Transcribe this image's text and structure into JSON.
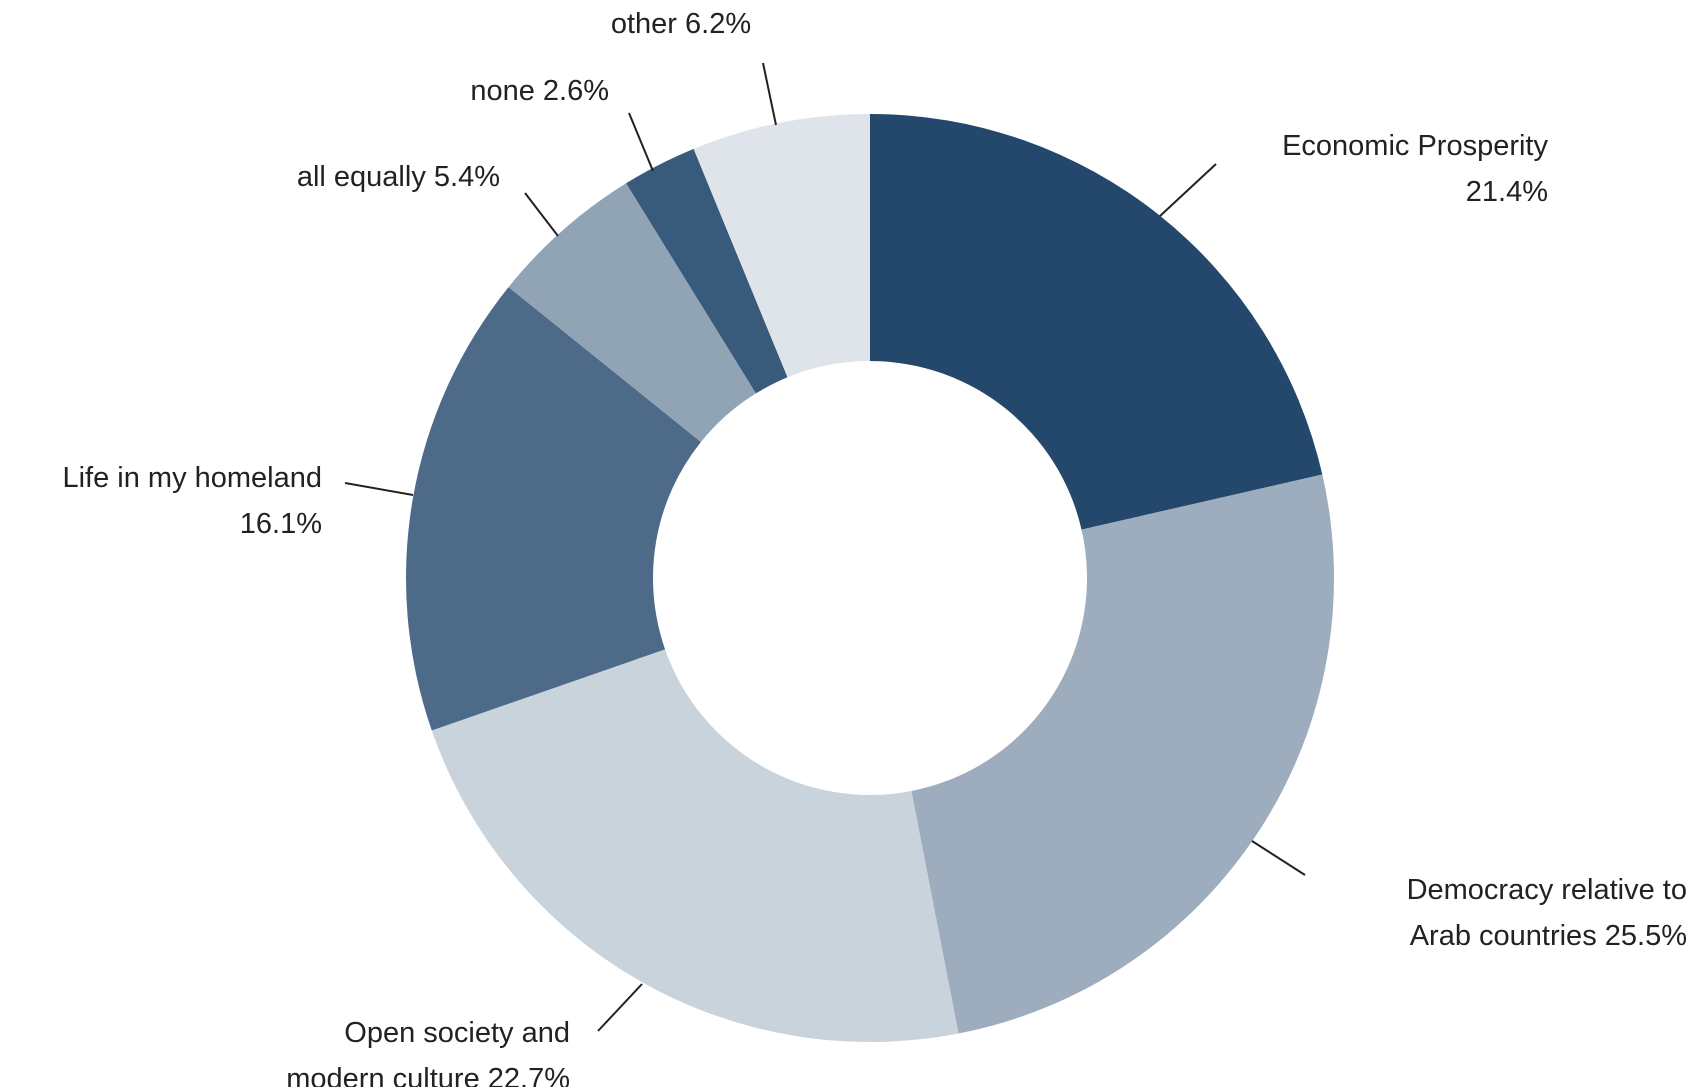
{
  "chart_data": {
    "type": "pie",
    "categories": [
      "Economic Prosperity",
      "Democracy relative to Arab countries",
      "Open society and modern culture",
      "Life in my homeland",
      "all equally",
      "none",
      "other"
    ],
    "values": [
      21.4,
      25.5,
      22.7,
      16.1,
      5.4,
      2.6,
      6.2
    ],
    "value_labels": [
      "21.4%",
      "25.5%",
      "22.7%",
      "16.1%",
      "5.4%",
      "2.6%",
      "6.2%"
    ],
    "colors": [
      "#23486b",
      "#9dadbd",
      "#c8d3dc",
      "#4d6b88",
      "#91a4b5",
      "#385a7b",
      "#dfe4eb"
    ],
    "donut": true
  }
}
